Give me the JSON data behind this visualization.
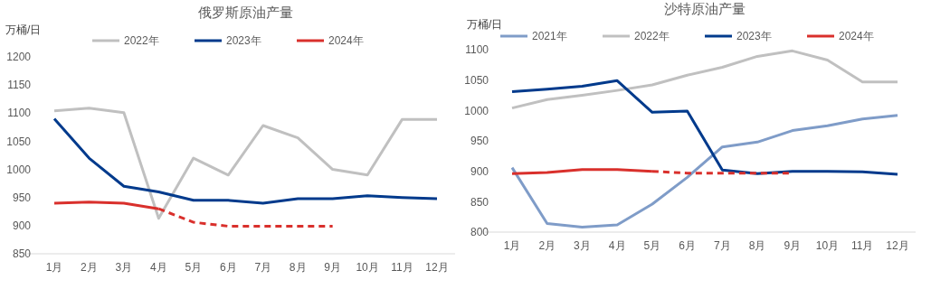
{
  "chart_data": [
    {
      "type": "line",
      "title": "俄罗斯原油产量",
      "ylabel": "万桶/日",
      "categories": [
        "1月",
        "2月",
        "3月",
        "4月",
        "5月",
        "6月",
        "7月",
        "8月",
        "9月",
        "10月",
        "11月",
        "12月"
      ],
      "ylim": [
        850,
        1200
      ],
      "yticks": [
        850,
        900,
        950,
        1000,
        1050,
        1100,
        1150,
        1200
      ],
      "grid": false,
      "legend": "top",
      "marker": "none",
      "series": [
        {
          "name": "2022年",
          "color": "#c0c0c0",
          "line_style": "solid",
          "values": [
            1104,
            1109,
            1101,
            913,
            1020,
            990,
            1078,
            1056,
            1000,
            990,
            1089,
            1089
          ]
        },
        {
          "name": "2023年",
          "color": "#003a8c",
          "line_style": "solid",
          "values": [
            1090,
            1020,
            970,
            960,
            945,
            945,
            940,
            948,
            948,
            953,
            950,
            948
          ]
        },
        {
          "name": "2024年",
          "color": "#d9302c",
          "line_style": "solid",
          "values": [
            940,
            942,
            940,
            930,
            null,
            null,
            null,
            null,
            null,
            null,
            null,
            null
          ]
        },
        {
          "color": "#d9302c",
          "line_style": "dashed",
          "values": [
            null,
            null,
            null,
            930,
            906,
            899,
            899,
            899,
            899,
            null,
            null,
            null
          ]
        }
      ]
    },
    {
      "type": "line",
      "title": "沙特原油产量",
      "ylabel": "万桶/日",
      "categories": [
        "1月",
        "2月",
        "3月",
        "4月",
        "5月",
        "6月",
        "7月",
        "8月",
        "9月",
        "10月",
        "11月",
        "12月"
      ],
      "ylim": [
        800,
        1100
      ],
      "yticks": [
        800,
        850,
        900,
        950,
        1000,
        1050,
        1100
      ],
      "grid": false,
      "legend": "top",
      "marker": "none",
      "series": [
        {
          "name": "2021年",
          "color": "#7f9cc8",
          "line_style": "solid",
          "values": [
            906,
            814,
            808,
            812,
            846,
            890,
            940,
            948,
            967,
            975,
            986,
            992
          ]
        },
        {
          "name": "2022年",
          "color": "#c0c0c0",
          "line_style": "solid",
          "values": [
            1004,
            1018,
            1025,
            1033,
            1042,
            1058,
            1071,
            1089,
            1098,
            1083,
            1047,
            1047
          ]
        },
        {
          "name": "2023年",
          "color": "#003a8c",
          "line_style": "solid",
          "values": [
            1031,
            1035,
            1040,
            1049,
            997,
            999,
            902,
            896,
            900,
            900,
            899,
            895
          ]
        },
        {
          "name": "2024年",
          "color": "#d9302c",
          "line_style": "solid",
          "values": [
            896,
            898,
            903,
            903,
            900,
            null,
            null,
            null,
            null,
            null,
            null,
            null
          ]
        },
        {
          "color": "#d9302c",
          "line_style": "dashed",
          "values": [
            null,
            null,
            null,
            null,
            900,
            897,
            897,
            897,
            897,
            null,
            null,
            null
          ]
        }
      ]
    }
  ]
}
